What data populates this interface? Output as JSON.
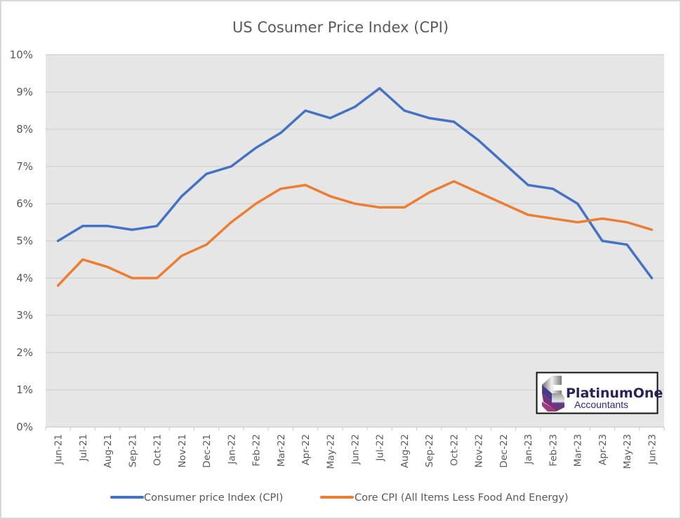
{
  "chart_data": {
    "type": "line",
    "title": "US Cosumer Price Index (CPI)",
    "xlabel": "",
    "ylabel": "",
    "categories": [
      "Jun-21",
      "Jul-21",
      "Aug-21",
      "Sep-21",
      "Oct-21",
      "Nov-21",
      "Dec-21",
      "Jan-22",
      "Feb-22",
      "Mar-22",
      "Apr-22",
      "May-22",
      "Jun-22",
      "Jul-22",
      "Aug-22",
      "Sep-22",
      "Oct-22",
      "Nov-22",
      "Dec-22",
      "Jan-23",
      "Feb-23",
      "Mar-23",
      "Apr-23",
      "May-23",
      "Jun-23"
    ],
    "ylim": [
      0,
      10
    ],
    "yticks": [
      0,
      1,
      2,
      3,
      4,
      5,
      6,
      7,
      8,
      9,
      10
    ],
    "ytick_labels": [
      "0%",
      "1%",
      "2%",
      "3%",
      "4%",
      "5%",
      "6%",
      "7%",
      "8%",
      "9%",
      "10%"
    ],
    "grid": true,
    "legend_position": "bottom",
    "series": [
      {
        "name": "Consumer price Index (CPI)",
        "color": "#4472c4",
        "values": [
          5.0,
          5.4,
          5.4,
          5.3,
          5.4,
          6.2,
          6.8,
          7.0,
          7.5,
          7.9,
          8.5,
          8.3,
          8.6,
          9.1,
          8.5,
          8.3,
          8.2,
          7.7,
          7.1,
          6.5,
          6.4,
          6.0,
          5.0,
          4.9,
          4.0
        ]
      },
      {
        "name": "Core CPI (All Items Less Food And Energy)",
        "color": "#ed7d31",
        "values": [
          3.8,
          4.5,
          4.3,
          4.0,
          4.0,
          4.6,
          4.9,
          5.5,
          6.0,
          6.4,
          6.5,
          6.2,
          6.0,
          5.9,
          5.9,
          6.3,
          6.6,
          6.3,
          6.0,
          5.7,
          5.6,
          5.5,
          5.6,
          5.5,
          5.3
        ]
      }
    ]
  },
  "logo": {
    "name": "PlatinumOne",
    "subtitle": "Accountants"
  },
  "colors": {
    "plot_background": "#e7e6e6",
    "gridline": "#d4d4d4",
    "text": "#595959"
  }
}
